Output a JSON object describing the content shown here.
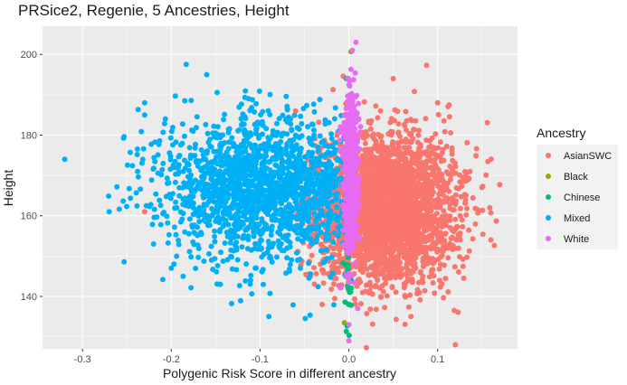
{
  "chart_data": {
    "type": "scatter",
    "title": "PRSice2, Regenie, 5 Ancestries, Height",
    "xlabel": "Polygenic Risk Score in different ancestry",
    "ylabel": "Height",
    "xlim": [
      -0.345,
      0.19
    ],
    "ylim": [
      127,
      207
    ],
    "x_ticks": [
      -0.3,
      -0.2,
      -0.1,
      0.0,
      0.1
    ],
    "x_tick_labels": [
      "-0.3",
      "-0.2",
      "-0.1",
      "0.0",
      "0.1"
    ],
    "y_ticks": [
      140,
      160,
      180,
      200
    ],
    "y_tick_labels": [
      "140",
      "160",
      "180",
      "200"
    ],
    "grid": true,
    "legend": {
      "title": "Ancestry",
      "position": "right"
    },
    "series": [
      {
        "name": "AsianSWC",
        "color": "#F8766D",
        "count": 3200,
        "x_mean": 0.04,
        "x_sd": 0.04,
        "y_mean": 162,
        "y_sd": 9,
        "points": [
          {
            "x": -0.23,
            "y": 161
          },
          {
            "x": 0.12,
            "y": 128
          },
          {
            "x": 0.16,
            "y": 154
          },
          {
            "x": 0.15,
            "y": 167
          },
          {
            "x": 0.07,
            "y": 135
          },
          {
            "x": 0.05,
            "y": 194
          },
          {
            "x": -0.06,
            "y": 186
          },
          {
            "x": 0.1,
            "y": 188
          },
          {
            "x": -0.03,
            "y": 138
          }
        ]
      },
      {
        "name": "Black",
        "color": "#A3A500",
        "count": 25,
        "x_mean": 0.0,
        "x_sd": 0.002,
        "y_mean": 166,
        "y_sd": 14,
        "points": []
      },
      {
        "name": "Chinese",
        "color": "#00BF7D",
        "count": 70,
        "x_mean": -0.001,
        "x_sd": 0.002,
        "y_mean": 158,
        "y_sd": 12,
        "points": [
          {
            "x": 0.0,
            "y": 138
          },
          {
            "x": 0.001,
            "y": 141
          }
        ]
      },
      {
        "name": "Mixed",
        "color": "#00B0F6",
        "count": 1700,
        "x_mean": -0.1,
        "x_sd": 0.055,
        "y_mean": 167,
        "y_sd": 9,
        "points": [
          {
            "x": -0.32,
            "y": 174
          },
          {
            "x": -0.27,
            "y": 161
          },
          {
            "x": -0.23,
            "y": 188
          },
          {
            "x": -0.23,
            "y": 185
          },
          {
            "x": -0.16,
            "y": 195
          },
          {
            "x": -0.09,
            "y": 135
          },
          {
            "x": -0.22,
            "y": 153
          },
          {
            "x": -0.2,
            "y": 147
          }
        ]
      },
      {
        "name": "White",
        "color": "#E76BF3",
        "count": 500,
        "x_mean": 0.002,
        "x_sd": 0.004,
        "y_mean": 170,
        "y_sd": 10,
        "points": [
          {
            "x": 0.008,
            "y": 203
          },
          {
            "x": 0.004,
            "y": 201
          },
          {
            "x": 0.0,
            "y": 129
          },
          {
            "x": 0.0,
            "y": 133
          },
          {
            "x": 0.01,
            "y": 137
          }
        ]
      }
    ]
  }
}
